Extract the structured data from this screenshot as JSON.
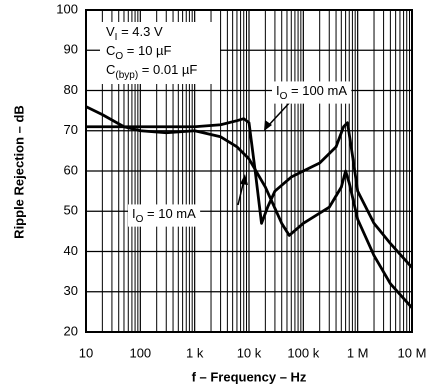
{
  "chart_data": {
    "type": "line",
    "ylabel": "Ripple Rejection – dB",
    "xlabel": "f – Frequency – Hz",
    "xlog": true,
    "grid": true,
    "minor_grid": true,
    "xlim": [
      10,
      10000000
    ],
    "xticks": [
      10,
      100,
      {
        "value": 1000,
        "label": "1 k"
      },
      {
        "value": 10000,
        "label": "10 k"
      },
      {
        "value": 100000,
        "label": "100 k"
      },
      {
        "value": 1000000,
        "label": "1 M"
      },
      {
        "value": 10000000,
        "label": "10 M"
      }
    ],
    "ylim": [
      20,
      100
    ],
    "yticks": [
      20,
      30,
      40,
      50,
      60,
      70,
      80,
      90,
      100
    ],
    "conditions": [
      {
        "main": "V",
        "sub": "I",
        "rest": " = 4.3 V"
      },
      {
        "main": "C",
        "sub": "O",
        "rest": " = 10 µF"
      },
      {
        "main": "C",
        "sub": "(byp)",
        "rest": " = 0.01 µF"
      }
    ],
    "series": [
      {
        "label": {
          "main": "I",
          "sub": "O",
          "rest": " = 100 mA"
        },
        "color": "#000000",
        "x": [
          10,
          100,
          1000,
          3000,
          6000,
          8000,
          10000,
          13000,
          17000,
          22000,
          30000,
          60000,
          100000,
          200000,
          400000,
          550000,
          650000,
          800000,
          1000000,
          2000000,
          4000000,
          10000000
        ],
        "values": [
          71,
          71,
          71,
          71.5,
          72.5,
          73,
          72,
          60,
          47,
          51,
          55,
          58.5,
          60,
          62,
          66,
          71,
          72,
          64,
          55,
          47,
          42,
          36
        ]
      },
      {
        "label": {
          "main": "I",
          "sub": "O",
          "rest": " = 10 mA"
        },
        "color": "#000000",
        "x": [
          10,
          20,
          50,
          100,
          300,
          1000,
          3000,
          6000,
          10000,
          20000,
          40000,
          55000,
          100000,
          300000,
          500000,
          600000,
          700000,
          1000000,
          2000000,
          4000000,
          10000000
        ],
        "values": [
          76,
          74,
          71,
          70,
          69.5,
          70,
          68.5,
          66,
          63,
          56,
          47,
          44,
          47,
          51,
          56,
          60,
          57,
          48,
          39,
          32,
          26
        ]
      }
    ]
  }
}
